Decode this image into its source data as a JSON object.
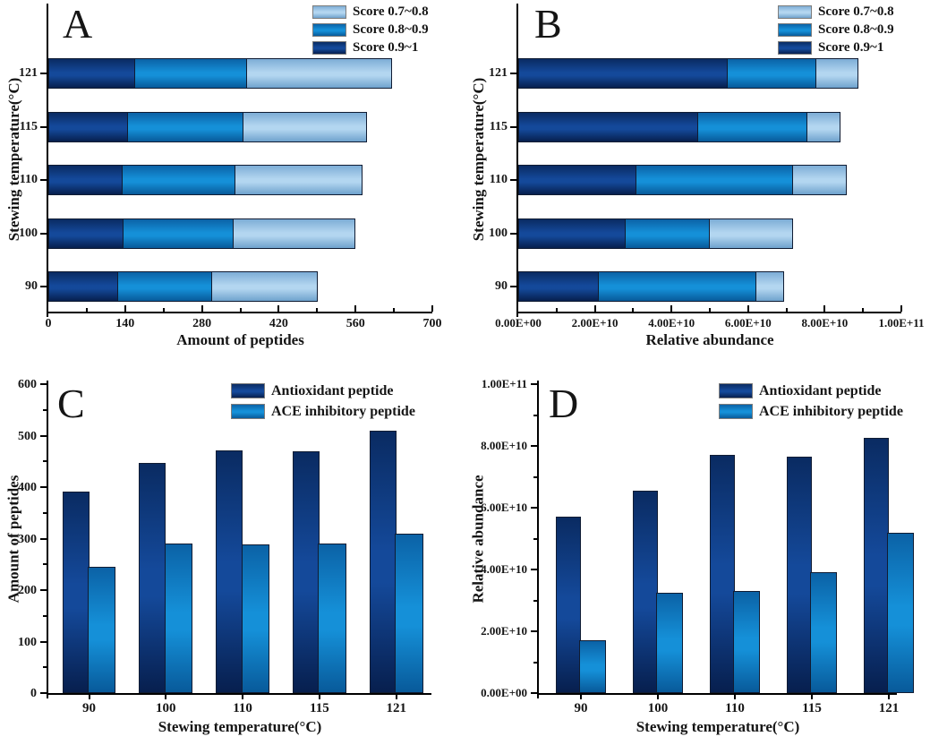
{
  "colors": {
    "dark_blue": "#0b2f6b",
    "medium_blue": "#0f80c6",
    "light_blue": "#9fc8ea",
    "bar_border": "#101c33",
    "axis_color": "#000000"
  },
  "chart_data": [
    {
      "panel": "A",
      "type": "bar",
      "orientation": "horizontal-stacked",
      "xlabel": "Amount of peptides",
      "ylabel": "Stewing temperature(°C)",
      "categories": [
        "121",
        "115",
        "110",
        "100",
        "90"
      ],
      "xlim": [
        0,
        700
      ],
      "xtick_values": [
        0,
        140,
        280,
        420,
        560,
        700
      ],
      "xtick_labels": [
        "0",
        "140",
        "280",
        "420",
        "560",
        "700"
      ],
      "xminor": [
        70,
        210,
        350,
        490,
        630
      ],
      "legend": [
        {
          "label": "Score 0.7~0.8",
          "color": "light"
        },
        {
          "label": "Score 0.8~0.9",
          "color": "medium"
        },
        {
          "label": "Score 0.9~1",
          "color": "dark"
        }
      ],
      "series": [
        {
          "name": "Score 0.9~1",
          "color": "dark",
          "values": [
            160,
            147,
            137,
            138,
            129
          ]
        },
        {
          "name": "Score 0.8~0.9",
          "color": "medium",
          "values": [
            204,
            209,
            205,
            201,
            170
          ]
        },
        {
          "name": "Score 0.7~0.8",
          "color": "light",
          "values": [
            263,
            225,
            231,
            220,
            192
          ]
        }
      ]
    },
    {
      "panel": "B",
      "type": "bar",
      "orientation": "horizontal-stacked",
      "xlabel": "Relative abundance",
      "ylabel": "Stewing temperature(°C)",
      "categories": [
        "121",
        "115",
        "110",
        "100",
        "90"
      ],
      "xlim": [
        0,
        100000000000.0
      ],
      "xtick_values": [
        0,
        20000000000.0,
        40000000000.0,
        60000000000.0,
        80000000000.0,
        100000000000.0
      ],
      "xtick_labels": [
        "0.00E+00",
        "2.00E+10",
        "4.00E+10",
        "6.00E+10",
        "8.00E+10",
        "1.00E+11"
      ],
      "xminor": [
        10000000000.0,
        30000000000.0,
        50000000000.0,
        70000000000.0,
        90000000000.0
      ],
      "legend": [
        {
          "label": "Score 0.7~0.8",
          "color": "light"
        },
        {
          "label": "Score 0.8~0.9",
          "color": "medium"
        },
        {
          "label": "Score 0.9~1",
          "color": "dark"
        }
      ],
      "series": [
        {
          "name": "Score 0.9~1",
          "color": "dark",
          "values": [
            54800000000.0,
            47100000000.0,
            30900000000.0,
            28200000000.0,
            21200000000.0
          ]
        },
        {
          "name": "Score 0.8~0.9",
          "color": "medium",
          "values": [
            23200000000.0,
            28500000000.0,
            40900000000.0,
            22000000000.0,
            41000000000.0
          ]
        },
        {
          "name": "Score 0.7~0.8",
          "color": "light",
          "values": [
            10800000000.0,
            8600000000.0,
            13900000000.0,
            21600000000.0,
            7300000000.0
          ]
        }
      ]
    },
    {
      "panel": "C",
      "type": "bar",
      "orientation": "vertical-grouped",
      "xlabel": "Stewing temperature(°C)",
      "ylabel": "Amount of peptides",
      "categories": [
        "90",
        "100",
        "110",
        "115",
        "121"
      ],
      "ylim": [
        0,
        600
      ],
      "ytick_values": [
        0,
        100,
        200,
        300,
        400,
        500,
        600
      ],
      "ytick_labels": [
        "0",
        "100",
        "200",
        "300",
        "400",
        "500",
        "600"
      ],
      "yminor": [
        50,
        150,
        250,
        350,
        450,
        550
      ],
      "legend": [
        {
          "label": "Antioxidant peptide",
          "color": "dark"
        },
        {
          "label": "ACE inhibitory peptide",
          "color": "medium"
        }
      ],
      "series": [
        {
          "name": "Antioxidant peptide",
          "color": "dark",
          "values": [
            392,
            447,
            472,
            470,
            509
          ]
        },
        {
          "name": "ACE inhibitory peptide",
          "color": "medium",
          "values": [
            245,
            291,
            288,
            291,
            309
          ]
        }
      ]
    },
    {
      "panel": "D",
      "type": "bar",
      "orientation": "vertical-grouped",
      "xlabel": "Stewing temperature(°C)",
      "ylabel": "Relative abundance",
      "categories": [
        "90",
        "100",
        "110",
        "115",
        "121"
      ],
      "ylim": [
        0,
        100000000000.0
      ],
      "ytick_values": [
        0,
        20000000000.0,
        40000000000.0,
        60000000000.0,
        80000000000.0,
        100000000000.0
      ],
      "ytick_labels": [
        "0.00E+00",
        "2.00E+10",
        "4.00E+10",
        "6.00E+10",
        "8.00E+10",
        "1.00E+11"
      ],
      "yminor": [
        10000000000.0,
        30000000000.0,
        50000000000.0,
        70000000000.0,
        90000000000.0
      ],
      "legend": [
        {
          "label": "Antioxidant peptide",
          "color": "dark"
        },
        {
          "label": "ACE inhibitory peptide",
          "color": "medium"
        }
      ],
      "series": [
        {
          "name": "Antioxidant peptide",
          "color": "dark",
          "values": [
            57000000000.0,
            65500000000.0,
            77000000000.0,
            76500000000.0,
            82500000000.0
          ]
        },
        {
          "name": "ACE inhibitory peptide",
          "color": "medium",
          "values": [
            17000000000.0,
            32500000000.0,
            33000000000.0,
            39000000000.0,
            52000000000.0
          ]
        }
      ]
    }
  ]
}
